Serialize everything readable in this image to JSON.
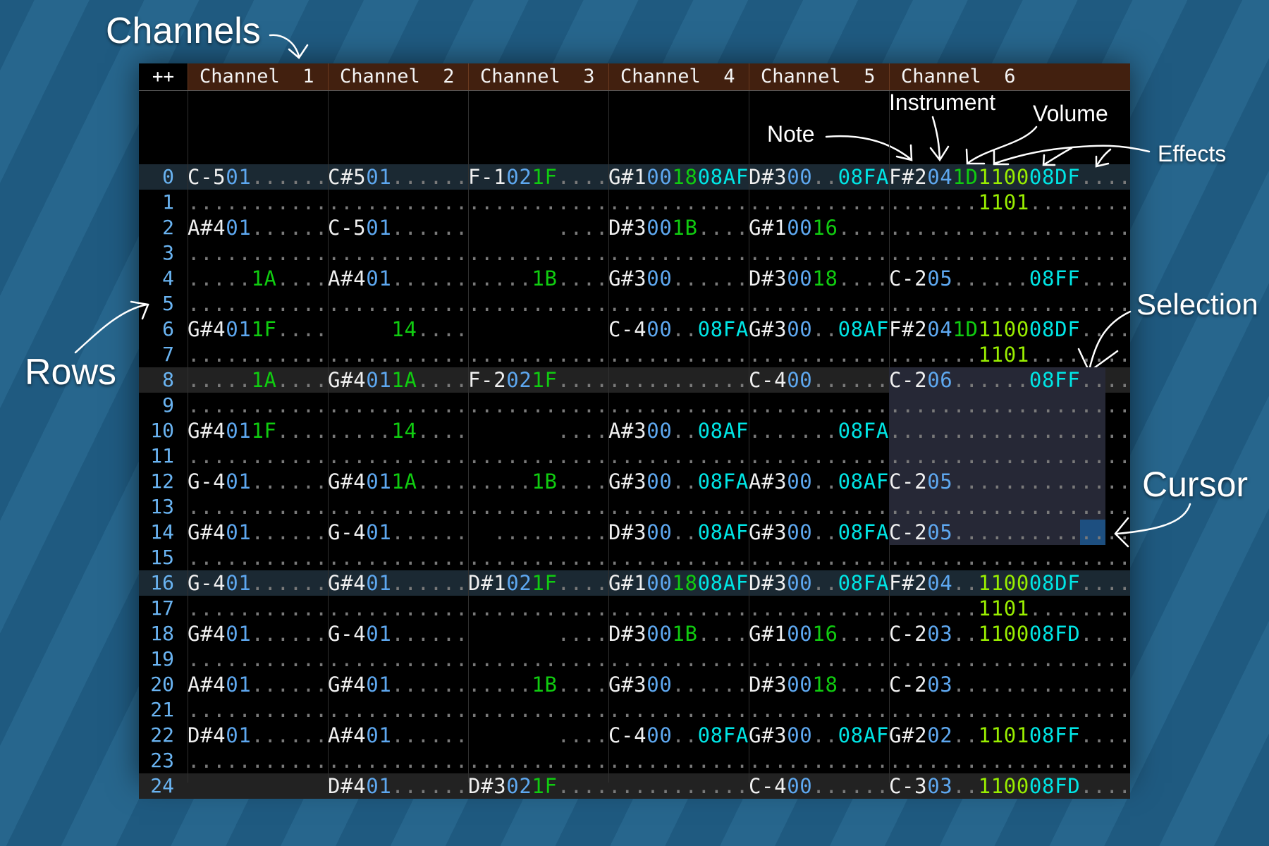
{
  "header": {
    "corner_label": "++",
    "channels": [
      "Channel  1",
      "Channel  2",
      "Channel  3",
      "Channel  4",
      "Channel  5",
      "Channel  6"
    ]
  },
  "colors": {
    "header_bg": "#42200f",
    "note": "#f0f0f0",
    "instrument": "#5ea8f0",
    "volume": "#10cc10",
    "effect_cyan": "#00e6e6",
    "effect_lime": "#99ee00",
    "row_number": "#6ab4f2",
    "selection": "#262836",
    "cursor": "#1d4f80"
  },
  "selection": {
    "channel": 6,
    "from_row": 8,
    "to_row": 14
  },
  "cursor": {
    "channel": 6,
    "row": 14
  },
  "rows": [
    {
      "num": "0",
      "cells": [
        "C-501......",
        "C#501......",
        "F-1021F....",
        "G#1001808AF",
        "D#300..08FA",
        "F#2041D110008DF...."
      ]
    },
    {
      "num": "1",
      "cells": [
        "...........",
        "...........",
        "...........",
        "...........",
        "...........",
        ".......1101........"
      ]
    },
    {
      "num": "2",
      "cells": [
        "A#401......",
        "C-501......",
        "       ....",
        "D#3001B....",
        "G#10016....",
        "..................."
      ]
    },
    {
      "num": "3",
      "cells": [
        "...........",
        "...........",
        "...........",
        "...........",
        "...........",
        "..................."
      ]
    },
    {
      "num": "4",
      "cells": [
        ".....1A....",
        "A#401......",
        ".....1B....",
        "G#300......",
        "D#30018....",
        "C-205......08FF...."
      ]
    },
    {
      "num": "5",
      "cells": [
        "...........",
        "...........",
        "...........",
        "...........",
        "...........",
        "..................."
      ]
    },
    {
      "num": "6",
      "cells": [
        "G#4011F....",
        "     14....",
        "           ",
        "C-400..08FA",
        "G#300..08AF",
        "F#2041D110008DF...."
      ]
    },
    {
      "num": "7",
      "cells": [
        "...........",
        "...........",
        "...........",
        "...........",
        "...........",
        ".......1101........"
      ]
    },
    {
      "num": "8",
      "cells": [
        ".....1A....",
        "G#4011A....",
        "F-2021F....",
        "...........",
        "C-400......",
        "C-206......08FF...."
      ]
    },
    {
      "num": "9",
      "cells": [
        "...........",
        "...........",
        "...........",
        "...........",
        "...........",
        "..................."
      ]
    },
    {
      "num": "10",
      "cells": [
        "G#4011F....",
        ".....14....",
        "       ....",
        "A#300..08AF",
        ".......08FA",
        "..................."
      ]
    },
    {
      "num": "11",
      "cells": [
        "...........",
        "...........",
        "...........",
        "...........",
        "...........",
        "..................."
      ]
    },
    {
      "num": "12",
      "cells": [
        "G-401......",
        "G#4011A....",
        ".....1B....",
        "G#300..08FA",
        "A#300..08AF",
        "C-205.............."
      ]
    },
    {
      "num": "13",
      "cells": [
        "...........",
        "...........",
        "...........",
        "...........",
        "...........",
        "..................."
      ]
    },
    {
      "num": "14",
      "cells": [
        "G#401......",
        "G-401......",
        "  .........",
        "D#300..08AF",
        "G#300..08FA",
        "C-205.............."
      ]
    },
    {
      "num": "15",
      "cells": [
        "...........",
        "...........",
        "...........",
        "...........",
        "...........",
        "..................."
      ]
    },
    {
      "num": "16",
      "cells": [
        "G-401......",
        "G#401......",
        "D#1021F....",
        "G#1001808AF",
        "D#300..08FA",
        "F#204..110008DF...."
      ]
    },
    {
      "num": "17",
      "cells": [
        "...........",
        "...........",
        "...........",
        "...........",
        "...........",
        ".......1101........"
      ]
    },
    {
      "num": "18",
      "cells": [
        "G#401......",
        "G-401......",
        "       ....",
        "D#3001B....",
        "G#10016....",
        "C-203..110008FD...."
      ]
    },
    {
      "num": "19",
      "cells": [
        "...........",
        "...........",
        "...........",
        "...........",
        "...........",
        "..................."
      ]
    },
    {
      "num": "20",
      "cells": [
        "A#401......",
        "G#401......",
        ".....1B....",
        "G#300......",
        "D#30018....",
        "C-203.............."
      ]
    },
    {
      "num": "21",
      "cells": [
        "...........",
        "...........",
        "...........",
        "...........",
        "...........",
        "..................."
      ]
    },
    {
      "num": "22",
      "cells": [
        "D#401......",
        "A#401......",
        "       ....",
        "C-400..08FA",
        "G#300..08AF",
        "G#202..110108FF...."
      ]
    },
    {
      "num": "23",
      "cells": [
        "...........",
        "...........",
        "...........",
        "...........",
        "...........",
        "..................."
      ]
    },
    {
      "num": "24",
      "cells": [
        "           ",
        "D#401......",
        "D#3021F....",
        "...........",
        "C-400......",
        "C-303..110008FD...."
      ]
    }
  ],
  "annotations": {
    "channels": "Channels",
    "rows": "Rows",
    "note": "Note",
    "instrument": "Instrument",
    "volume": "Volume",
    "effects": "Effects",
    "selection": "Selection",
    "cursor": "Cursor"
  }
}
